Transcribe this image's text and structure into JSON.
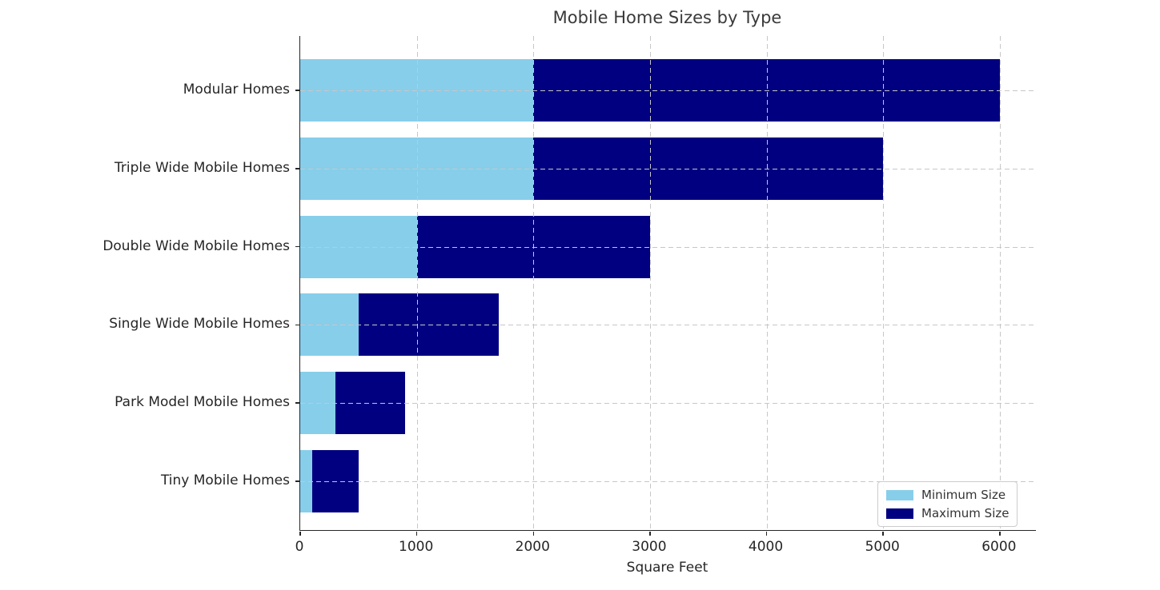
{
  "chart_data": {
    "type": "bar",
    "orientation": "horizontal",
    "stacked": true,
    "title": "Mobile Home Sizes by Type",
    "xlabel": "Square Feet",
    "categories": [
      "Modular Homes",
      "Triple Wide Mobile Homes",
      "Double Wide Mobile Homes",
      "Single Wide Mobile Homes",
      "Park Model Mobile Homes",
      "Tiny Mobile Homes"
    ],
    "series": [
      {
        "name": "Minimum Size",
        "color": "#87CEEB",
        "values": [
          2000,
          2000,
          1000,
          500,
          300,
          100
        ]
      },
      {
        "name": "Maximum Size",
        "color": "#000080",
        "values": [
          4000,
          3000,
          2000,
          1200,
          600,
          400
        ]
      }
    ],
    "bar_right_edges": [
      6000,
      5000,
      3000,
      1700,
      900,
      500
    ],
    "xticks": [
      0,
      1000,
      2000,
      3000,
      4000,
      5000,
      6000
    ],
    "xlim": [
      0,
      6310
    ],
    "grid": "dashed",
    "legend": {
      "position": "lower right",
      "labels": [
        "Minimum Size",
        "Maximum Size"
      ]
    }
  }
}
